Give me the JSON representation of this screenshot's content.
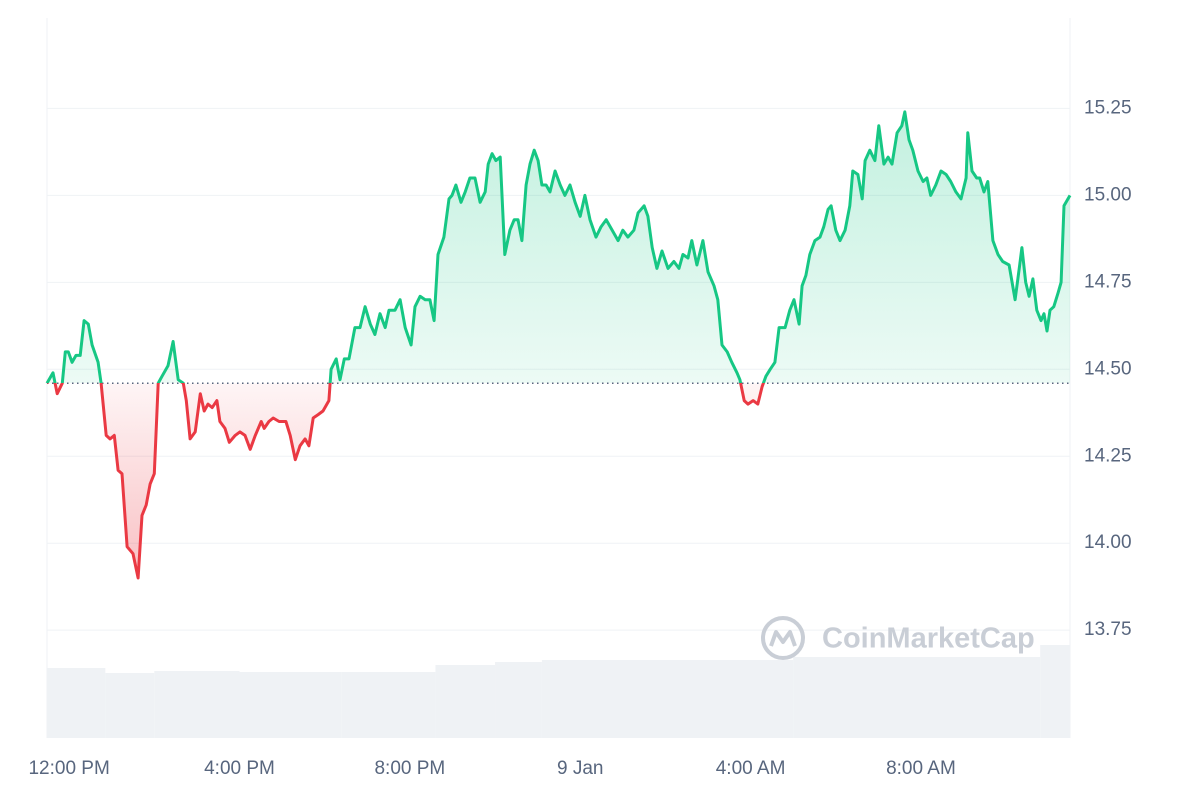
{
  "chart_data": {
    "type": "line",
    "watermark": "CoinMarketCap",
    "baseline": 14.46,
    "up_color": "#16c784",
    "down_color": "#ea3943",
    "grid": true,
    "xlim": [
      -0.52,
      23.5
    ],
    "ylim": [
      13.44,
      15.51
    ],
    "xticks": [
      {
        "value": 0,
        "label": "12:00 PM"
      },
      {
        "value": 4,
        "label": "4:00 PM"
      },
      {
        "value": 8,
        "label": "8:00 PM"
      },
      {
        "value": 12,
        "label": "9 Jan"
      },
      {
        "value": 16,
        "label": "4:00 AM"
      },
      {
        "value": 20,
        "label": "8:00 AM"
      }
    ],
    "yticks": [
      {
        "value": 13.75,
        "label": "13.75"
      },
      {
        "value": 14,
        "label": "14.00"
      },
      {
        "value": 14.25,
        "label": "14.25"
      },
      {
        "value": 14.5,
        "label": "14.50"
      },
      {
        "value": 14.75,
        "label": "14.75"
      },
      {
        "value": 15,
        "label": "15.00"
      },
      {
        "value": 15.25,
        "label": "15.25"
      }
    ],
    "x": [
      -0.52,
      -0.38,
      -0.28,
      -0.16,
      -0.09,
      -0.02,
      0.07,
      0.16,
      0.26,
      0.35,
      0.45,
      0.54,
      0.68,
      0.75,
      0.87,
      0.96,
      1.06,
      1.15,
      1.24,
      1.36,
      1.5,
      1.62,
      1.71,
      1.81,
      1.9,
      2.0,
      2.09,
      2.18,
      2.32,
      2.44,
      2.56,
      2.68,
      2.75,
      2.84,
      2.96,
      3.08,
      3.17,
      3.26,
      3.36,
      3.47,
      3.54,
      3.66,
      3.76,
      3.9,
      4.01,
      4.13,
      4.25,
      4.37,
      4.51,
      4.58,
      4.69,
      4.79,
      4.93,
      5.09,
      5.19,
      5.31,
      5.42,
      5.54,
      5.63,
      5.73,
      5.85,
      5.96,
      6.1,
      6.15,
      6.27,
      6.36,
      6.46,
      6.57,
      6.71,
      6.83,
      6.95,
      7.07,
      7.18,
      7.3,
      7.42,
      7.51,
      7.65,
      7.77,
      7.89,
      8.03,
      8.12,
      8.24,
      8.36,
      8.47,
      8.57,
      8.66,
      8.8,
      8.92,
      8.99,
      9.08,
      9.2,
      9.3,
      9.41,
      9.53,
      9.65,
      9.77,
      9.84,
      9.93,
      10.02,
      10.12,
      10.23,
      10.35,
      10.45,
      10.54,
      10.63,
      10.73,
      10.82,
      10.92,
      11.01,
      11.1,
      11.2,
      11.29,
      11.41,
      11.53,
      11.64,
      11.76,
      11.88,
      12.0,
      12.11,
      12.23,
      12.37,
      12.49,
      12.61,
      12.75,
      12.89,
      13.0,
      13.12,
      13.26,
      13.36,
      13.5,
      13.59,
      13.69,
      13.8,
      13.92,
      14.06,
      14.2,
      14.32,
      14.41,
      14.53,
      14.62,
      14.74,
      14.88,
      15.0,
      15.14,
      15.23,
      15.33,
      15.45,
      15.56,
      15.68,
      15.75,
      15.85,
      15.94,
      16.06,
      16.17,
      16.27,
      16.36,
      16.46,
      16.57,
      16.67,
      16.81,
      16.92,
      17.02,
      17.14,
      17.21,
      17.3,
      17.39,
      17.51,
      17.63,
      17.72,
      17.82,
      17.89,
      18.0,
      18.1,
      18.22,
      18.33,
      18.4,
      18.52,
      18.62,
      18.69,
      18.8,
      18.92,
      19.01,
      19.13,
      19.23,
      19.32,
      19.44,
      19.55,
      19.62,
      19.72,
      19.81,
      19.93,
      20.05,
      20.14,
      20.23,
      20.35,
      20.47,
      20.59,
      20.7,
      20.82,
      20.94,
      21.06,
      21.1,
      21.2,
      21.31,
      21.38,
      21.48,
      21.57,
      21.69,
      21.81,
      21.92,
      22.07,
      22.21,
      22.32,
      22.37,
      22.46,
      22.54,
      22.63,
      22.72,
      22.82,
      22.89,
      22.96,
      23.03,
      23.12,
      23.22,
      23.29,
      23.36,
      23.5
    ],
    "values": [
      14.46,
      14.49,
      14.43,
      14.46,
      14.55,
      14.55,
      14.52,
      14.54,
      14.54,
      14.64,
      14.63,
      14.57,
      14.52,
      14.46,
      14.31,
      14.3,
      14.31,
      14.21,
      14.2,
      13.99,
      13.97,
      13.9,
      14.08,
      14.11,
      14.17,
      14.2,
      14.46,
      14.48,
      14.51,
      14.58,
      14.47,
      14.46,
      14.41,
      14.3,
      14.32,
      14.43,
      14.38,
      14.4,
      14.39,
      14.41,
      14.35,
      14.33,
      14.29,
      14.31,
      14.32,
      14.31,
      14.27,
      14.31,
      14.35,
      14.33,
      14.35,
      14.36,
      14.35,
      14.35,
      14.31,
      14.24,
      14.28,
      14.3,
      14.28,
      14.36,
      14.37,
      14.38,
      14.41,
      14.5,
      14.53,
      14.47,
      14.53,
      14.53,
      14.62,
      14.62,
      14.68,
      14.63,
      14.6,
      14.66,
      14.62,
      14.67,
      14.67,
      14.7,
      14.62,
      14.57,
      14.68,
      14.71,
      14.7,
      14.7,
      14.64,
      14.83,
      14.88,
      14.99,
      15.0,
      15.03,
      14.98,
      15.01,
      15.05,
      15.05,
      14.98,
      15.01,
      15.09,
      15.12,
      15.1,
      15.11,
      14.83,
      14.9,
      14.93,
      14.93,
      14.87,
      15.03,
      15.09,
      15.13,
      15.1,
      15.03,
      15.03,
      15.01,
      15.07,
      15.03,
      15.0,
      15.03,
      14.98,
      14.94,
      15.0,
      14.93,
      14.88,
      14.91,
      14.93,
      14.9,
      14.87,
      14.9,
      14.88,
      14.9,
      14.95,
      14.97,
      14.94,
      14.85,
      14.79,
      14.84,
      14.79,
      14.81,
      14.79,
      14.83,
      14.82,
      14.87,
      14.8,
      14.87,
      14.78,
      14.74,
      14.7,
      14.57,
      14.55,
      14.52,
      14.49,
      14.47,
      14.41,
      14.4,
      14.41,
      14.4,
      14.45,
      14.48,
      14.5,
      14.52,
      14.62,
      14.62,
      14.67,
      14.7,
      14.63,
      14.74,
      14.77,
      14.83,
      14.87,
      14.88,
      14.91,
      14.96,
      14.97,
      14.9,
      14.87,
      14.9,
      14.97,
      15.07,
      15.06,
      14.99,
      15.1,
      15.13,
      15.1,
      15.2,
      15.09,
      15.11,
      15.09,
      15.18,
      15.2,
      15.24,
      15.16,
      15.13,
      15.07,
      15.04,
      15.05,
      15.0,
      15.03,
      15.07,
      15.06,
      15.04,
      15.01,
      14.99,
      15.05,
      15.18,
      15.07,
      15.05,
      15.05,
      15.01,
      15.04,
      14.87,
      14.83,
      14.81,
      14.8,
      14.7,
      14.8,
      14.85,
      14.75,
      14.71,
      14.76,
      14.67,
      14.64,
      14.66,
      14.61,
      14.67,
      14.68,
      14.72,
      14.75,
      14.97,
      15.0
    ],
    "volume": {
      "color": "#eff2f5",
      "ylim": [
        0,
        720
      ],
      "bins": [
        -0.52,
        0.85,
        2.0,
        4.0,
        6.4,
        8.6,
        10.0,
        11.1,
        17.0,
        22.8,
        23.5
      ],
      "values": [
        70,
        65,
        67,
        66,
        66,
        73,
        76,
        78,
        81,
        93
      ]
    }
  }
}
